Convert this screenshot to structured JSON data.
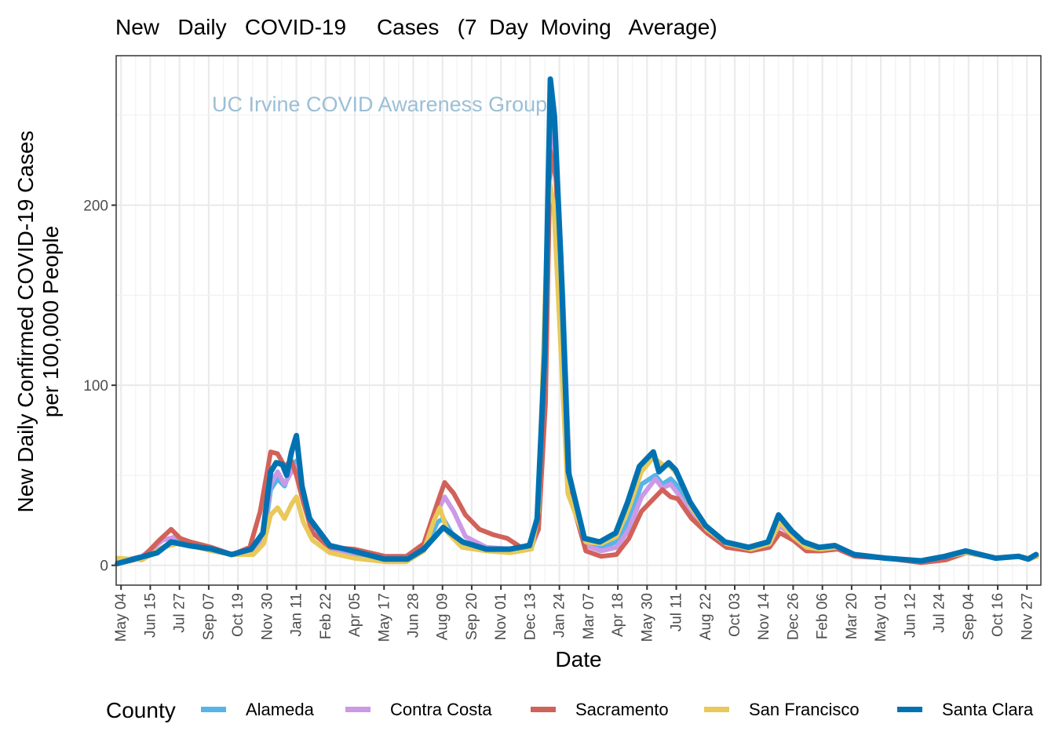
{
  "chart_data": {
    "type": "line",
    "title": "New   Daily   COVID-19     Cases   (7  Day  Moving   Average)",
    "watermark": "UC Irvine COVID Awareness Group",
    "xlabel": "Date",
    "ylabel_lines": [
      "New Daily Confirmed COVID-19 Cases",
      "per 100,000 People"
    ],
    "x_unit": "days since 2020-05-04",
    "xlim": [
      -7,
      1322
    ],
    "ylim": [
      -11,
      283
    ],
    "y_ticks": [
      0,
      100,
      200
    ],
    "y_tick_labels": [
      "0",
      "100",
      "200"
    ],
    "x_ticks": [
      0,
      42,
      84,
      126,
      168,
      210,
      252,
      294,
      336,
      378,
      420,
      462,
      504,
      546,
      588,
      630,
      672,
      714,
      756,
      798,
      840,
      882,
      924,
      966,
      1008,
      1050,
      1092,
      1134,
      1176,
      1218,
      1260,
      1302
    ],
    "x_tick_labels": [
      "May 04",
      "Jun 15",
      "Jul 27",
      "Sep 07",
      "Oct 19",
      "Nov 30",
      "Jan 11",
      "Feb 22",
      "Apr 05",
      "May 17",
      "Jun 28",
      "Aug 09",
      "Sep 20",
      "Nov 01",
      "Dec 13",
      "Jan 24",
      "Mar 07",
      "Apr 18",
      "May 30",
      "Jul 11",
      "Aug 22",
      "Oct 03",
      "Nov 14",
      "Dec 26",
      "Feb 06",
      "Mar 20",
      "May 01",
      "Jun 12",
      "Jul 24",
      "Sep 04",
      "Oct 16",
      "Nov 27"
    ],
    "grid": true,
    "legend": {
      "title": "County",
      "position": "bottom"
    },
    "series": [
      {
        "name": "Alameda",
        "color": "#56b4e9",
        "x": [
          -5,
          30,
          60,
          80,
          100,
          130,
          160,
          190,
          205,
          215,
          225,
          235,
          245,
          252,
          262,
          275,
          300,
          335,
          380,
          410,
          435,
          455,
          463,
          475,
          495,
          525,
          560,
          590,
          600,
          610,
          617,
          625,
          635,
          645,
          668,
          690,
          712,
          730,
          748,
          768,
          778,
          790,
          800,
          820,
          842,
          870,
          905,
          932,
          947,
          966,
          985,
          1005,
          1030,
          1055,
          1100,
          1150,
          1185,
          1215,
          1258,
          1290,
          1305,
          1316
        ],
        "y": [
          2,
          4,
          10,
          14,
          12,
          9,
          6,
          7,
          14,
          42,
          48,
          44,
          55,
          58,
          38,
          22,
          9,
          6,
          3,
          3,
          8,
          24,
          26,
          18,
          11,
          8,
          8,
          10,
          22,
          110,
          255,
          230,
          150,
          45,
          12,
          10,
          13,
          25,
          45,
          50,
          45,
          48,
          44,
          30,
          20,
          12,
          9,
          12,
          24,
          17,
          11,
          9,
          10,
          6,
          4,
          2.5,
          5,
          7,
          4,
          5,
          3.5,
          5
        ]
      },
      {
        "name": "Contra Costa",
        "color": "#cc99e6",
        "x": [
          -5,
          30,
          60,
          80,
          100,
          130,
          160,
          190,
          205,
          215,
          225,
          235,
          245,
          252,
          262,
          275,
          300,
          335,
          380,
          410,
          435,
          455,
          465,
          478,
          495,
          525,
          560,
          590,
          600,
          610,
          617,
          625,
          635,
          645,
          668,
          690,
          712,
          730,
          748,
          768,
          778,
          790,
          800,
          820,
          842,
          870,
          905,
          932,
          947,
          966,
          985,
          1005,
          1030,
          1055,
          1100,
          1150,
          1185,
          1215,
          1258,
          1290,
          1305,
          1316
        ],
        "y": [
          2,
          5,
          14,
          16,
          12,
          9,
          6,
          8,
          16,
          45,
          52,
          45,
          52,
          55,
          36,
          20,
          9,
          7,
          4,
          4,
          10,
          30,
          38,
          30,
          16,
          10,
          9,
          10,
          20,
          100,
          240,
          215,
          140,
          42,
          11,
          8,
          10,
          20,
          38,
          48,
          43,
          45,
          40,
          28,
          18,
          11,
          9,
          12,
          22,
          16,
          11,
          9,
          10,
          6,
          4,
          2.5,
          5,
          7,
          4,
          5,
          3.5,
          5
        ]
      },
      {
        "name": "Sacramento",
        "color": "#d1625a",
        "x": [
          -5,
          30,
          55,
          72,
          85,
          100,
          130,
          160,
          185,
          200,
          215,
          225,
          235,
          245,
          252,
          262,
          275,
          300,
          335,
          380,
          410,
          435,
          455,
          465,
          478,
          495,
          515,
          535,
          555,
          575,
          590,
          600,
          610,
          617,
          625,
          635,
          645,
          668,
          690,
          712,
          730,
          748,
          768,
          778,
          790,
          800,
          820,
          842,
          870,
          905,
          932,
          947,
          966,
          985,
          1005,
          1030,
          1055,
          1100,
          1150,
          1185,
          1215,
          1258,
          1290,
          1305,
          1316
        ],
        "y": [
          1,
          4,
          14,
          20,
          15,
          13,
          10,
          6,
          10,
          30,
          63,
          62,
          55,
          58,
          50,
          35,
          18,
          10,
          9,
          5,
          5,
          12,
          35,
          46,
          40,
          28,
          20,
          17,
          15,
          10,
          12,
          20,
          90,
          230,
          215,
          140,
          40,
          8,
          5,
          6,
          15,
          30,
          38,
          42,
          38,
          37,
          26,
          18,
          10,
          8,
          10,
          18,
          14,
          8,
          8,
          9,
          5,
          4,
          1.5,
          3,
          7,
          4,
          5,
          3.5,
          5
        ]
      },
      {
        "name": "San Francisco",
        "color": "#e8c95a",
        "x": [
          -5,
          30,
          60,
          80,
          100,
          130,
          160,
          190,
          205,
          215,
          225,
          235,
          245,
          252,
          262,
          275,
          300,
          335,
          380,
          410,
          435,
          450,
          458,
          470,
          490,
          525,
          560,
          590,
          600,
          608,
          615,
          622,
          632,
          642,
          668,
          690,
          712,
          730,
          748,
          765,
          778,
          790,
          800,
          820,
          842,
          870,
          905,
          932,
          947,
          966,
          985,
          1005,
          1030,
          1055,
          1100,
          1150,
          1185,
          1215,
          1258,
          1290,
          1305,
          1316
        ],
        "y": [
          4,
          3,
          10,
          12,
          11,
          8,
          6,
          6,
          12,
          28,
          32,
          26,
          34,
          38,
          24,
          14,
          7,
          4,
          2,
          2,
          8,
          25,
          32,
          18,
          10,
          8,
          7,
          9,
          30,
          130,
          215,
          200,
          120,
          40,
          13,
          12,
          16,
          32,
          52,
          60,
          56,
          55,
          50,
          32,
          20,
          12,
          9,
          12,
          24,
          16,
          10,
          9,
          10,
          6,
          4,
          2.5,
          5,
          7,
          4,
          5,
          3.5,
          5
        ]
      },
      {
        "name": "Santa Clara",
        "color": "#0072b2",
        "x": [
          -5,
          52,
          72,
          97,
          131,
          159,
          187,
          204,
          215,
          223,
          232,
          238,
          245,
          252,
          260,
          271,
          300,
          333,
          378,
          412,
          435,
          463,
          491,
          525,
          559,
          587,
          598,
          609,
          617,
          623,
          632,
          643,
          666,
          688,
          711,
          728,
          745,
          765,
          773,
          787,
          797,
          818,
          840,
          868,
          902,
          930,
          945,
          964,
          981,
          1003,
          1026,
          1054,
          1099,
          1150,
          1184,
          1214,
          1257,
          1290,
          1304,
          1315
        ],
        "y": [
          1,
          7,
          13,
          11,
          9,
          6,
          9,
          18,
          52,
          57,
          56,
          50,
          63,
          72,
          44,
          26,
          11,
          8,
          3.5,
          3.5,
          9,
          21,
          13,
          9,
          9,
          11,
          26,
          118,
          270,
          249,
          171,
          52,
          15,
          13,
          18,
          35,
          55,
          63,
          52,
          57,
          53,
          35,
          22,
          13,
          10,
          13,
          28,
          19,
          13,
          10,
          11,
          6,
          4,
          2.5,
          5,
          8,
          4,
          5,
          3.5,
          6
        ]
      }
    ]
  }
}
